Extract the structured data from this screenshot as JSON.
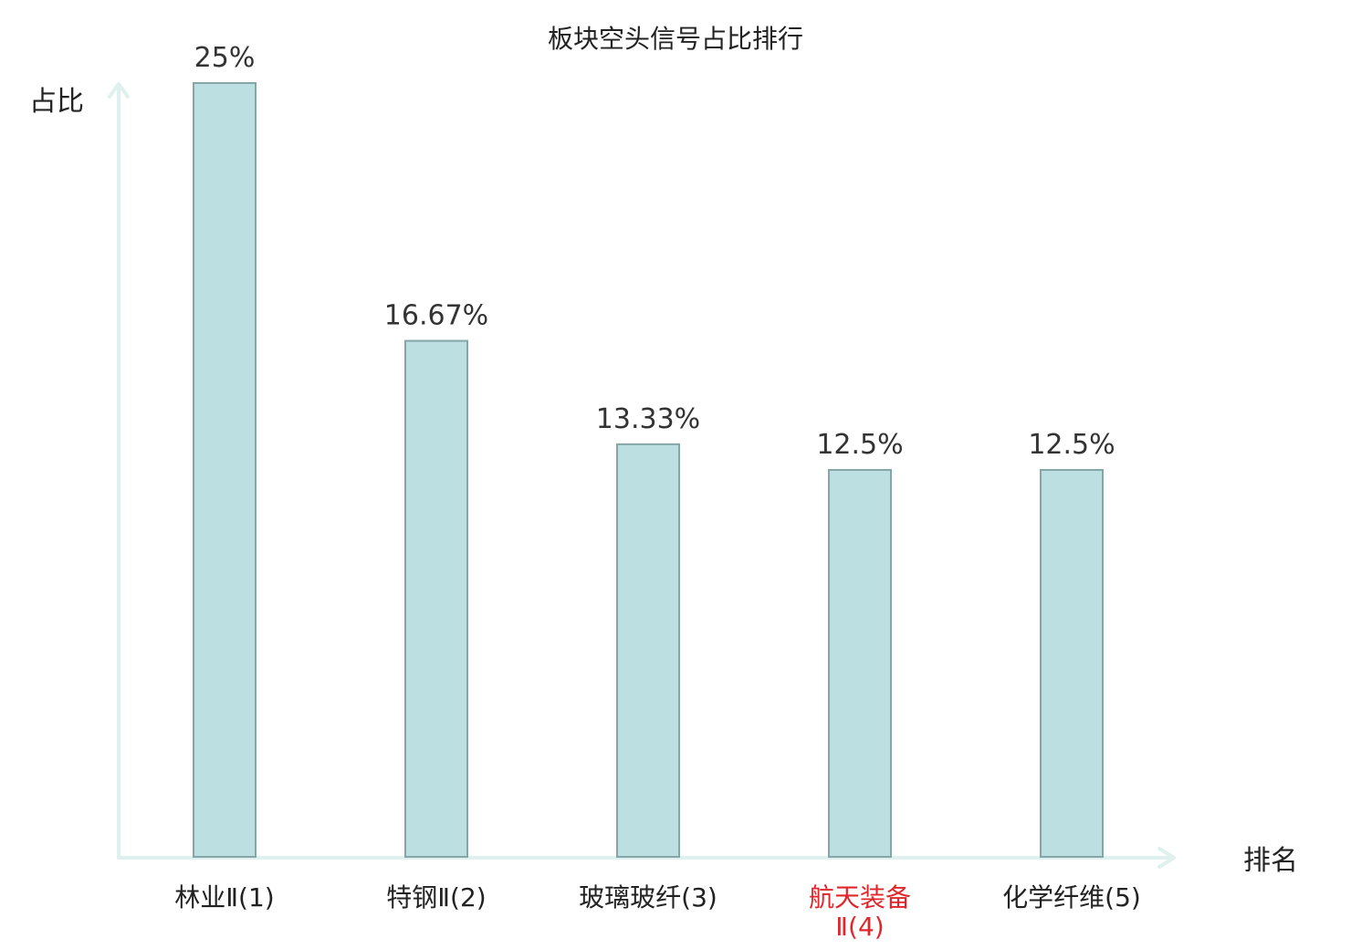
{
  "chart_data": {
    "type": "bar",
    "title": "板块空头信号占比排行",
    "ylabel": "占比",
    "xlabel": "排名",
    "categories": [
      "林业Ⅱ(1)",
      "特钢Ⅱ(2)",
      "玻璃玻纤(3)",
      "航天装备Ⅱ(4)",
      "化学纤维(5)"
    ],
    "values": [
      25,
      16.67,
      13.33,
      12.5,
      12.5
    ],
    "value_labels": [
      "25%",
      "16.67%",
      "13.33%",
      "12.5%",
      "12.5%"
    ],
    "ylim": [
      0,
      25
    ],
    "grid": false,
    "highlight_index": 3,
    "colors": {
      "bar_fill": "#bce0e2",
      "bar_stroke": "#86a5a7",
      "axis": "#dff1ee",
      "highlight_text": "#e0262b",
      "text": "#222222"
    }
  }
}
